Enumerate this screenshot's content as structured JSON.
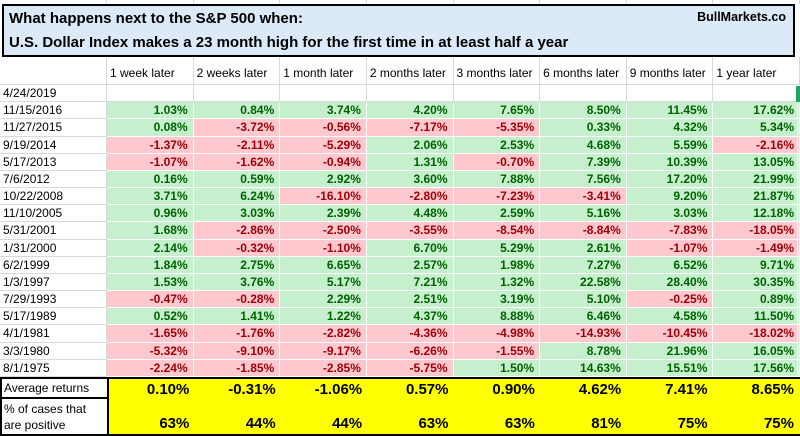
{
  "brand": "BullMarkets.co",
  "title": {
    "line1": "What happens next to the S&P 500 when:",
    "line2": "U.S. Dollar Index makes a 23 month high for the first time in at least half a year"
  },
  "columns": [
    "1 week later",
    "2 weeks later",
    "1 month later",
    "2 months later",
    "3 months later",
    "6 months later",
    "9 months later",
    "1 year later"
  ],
  "rows": [
    {
      "date": "4/24/2019",
      "values": [
        "",
        "",
        "",
        "",
        "",
        "",
        "",
        ""
      ]
    },
    {
      "date": "11/15/2016",
      "values": [
        "1.03%",
        "0.84%",
        "3.74%",
        "4.20%",
        "7.65%",
        "8.50%",
        "11.45%",
        "17.62%"
      ]
    },
    {
      "date": "11/27/2015",
      "values": [
        "0.08%",
        "-3.72%",
        "-0.56%",
        "-7.17%",
        "-5.35%",
        "0.33%",
        "4.32%",
        "5.34%"
      ]
    },
    {
      "date": "9/19/2014",
      "values": [
        "-1.37%",
        "-2.11%",
        "-5.29%",
        "2.06%",
        "2.53%",
        "4.68%",
        "5.59%",
        "-2.16%"
      ]
    },
    {
      "date": "5/17/2013",
      "values": [
        "-1.07%",
        "-1.62%",
        "-0.94%",
        "1.31%",
        "-0.70%",
        "7.39%",
        "10.39%",
        "13.05%"
      ]
    },
    {
      "date": "7/6/2012",
      "values": [
        "0.16%",
        "0.59%",
        "2.92%",
        "3.60%",
        "7.88%",
        "7.56%",
        "17.20%",
        "21.99%"
      ]
    },
    {
      "date": "10/22/2008",
      "values": [
        "3.71%",
        "6.24%",
        "-16.10%",
        "-2.80%",
        "-7.23%",
        "-3.41%",
        "9.20%",
        "21.87%"
      ]
    },
    {
      "date": "11/10/2005",
      "values": [
        "0.96%",
        "3.03%",
        "2.39%",
        "4.48%",
        "2.59%",
        "5.16%",
        "3.03%",
        "12.18%"
      ]
    },
    {
      "date": "5/31/2001",
      "values": [
        "1.68%",
        "-2.86%",
        "-2.50%",
        "-3.55%",
        "-8.54%",
        "-8.84%",
        "-7.83%",
        "-18.05%"
      ]
    },
    {
      "date": "1/31/2000",
      "values": [
        "2.14%",
        "-0.32%",
        "-1.10%",
        "6.70%",
        "5.29%",
        "2.61%",
        "-1.07%",
        "-1.49%"
      ]
    },
    {
      "date": "6/2/1999",
      "values": [
        "1.84%",
        "2.75%",
        "6.65%",
        "2.57%",
        "1.98%",
        "7.27%",
        "6.52%",
        "9.71%"
      ]
    },
    {
      "date": "1/3/1997",
      "values": [
        "1.53%",
        "3.76%",
        "5.17%",
        "7.21%",
        "1.32%",
        "22.58%",
        "28.40%",
        "30.35%"
      ]
    },
    {
      "date": "7/29/1993",
      "values": [
        "-0.47%",
        "-0.28%",
        "2.29%",
        "2.51%",
        "3.19%",
        "5.10%",
        "-0.25%",
        "0.89%"
      ]
    },
    {
      "date": "5/17/1989",
      "values": [
        "0.52%",
        "1.41%",
        "1.22%",
        "4.37%",
        "8.88%",
        "6.46%",
        "4.58%",
        "11.50%"
      ]
    },
    {
      "date": "4/1/1981",
      "values": [
        "-1.65%",
        "-1.76%",
        "-2.82%",
        "-4.36%",
        "-4.98%",
        "-14.93%",
        "-10.45%",
        "-18.02%"
      ]
    },
    {
      "date": "3/3/1980",
      "values": [
        "-5.32%",
        "-9.10%",
        "-9.17%",
        "-6.26%",
        "-1.55%",
        "8.78%",
        "21.96%",
        "16.05%"
      ]
    },
    {
      "date": "8/1/1975",
      "values": [
        "-2.24%",
        "-1.85%",
        "-2.85%",
        "-5.75%",
        "1.50%",
        "14.63%",
        "15.51%",
        "17.56%"
      ]
    }
  ],
  "summary": {
    "average_label": "Average returns",
    "average": [
      "0.10%",
      "-0.31%",
      "-1.06%",
      "0.57%",
      "0.90%",
      "4.62%",
      "7.41%",
      "8.65%"
    ],
    "positive_label_line1": "% of cases that",
    "positive_label_line2": "are positive",
    "positive": [
      "63%",
      "44%",
      "44%",
      "63%",
      "63%",
      "81%",
      "75%",
      "75%"
    ]
  },
  "colors": {
    "positive_bg": "#C6EFCE",
    "positive_text": "#006100",
    "negative_bg": "#FFC7CE",
    "negative_text": "#9C0006",
    "highlight_bg": "#FFFF00",
    "title_bg": "#DCE9F6",
    "gridline": "#D9D9D9",
    "edge_marker": "#21A366"
  }
}
